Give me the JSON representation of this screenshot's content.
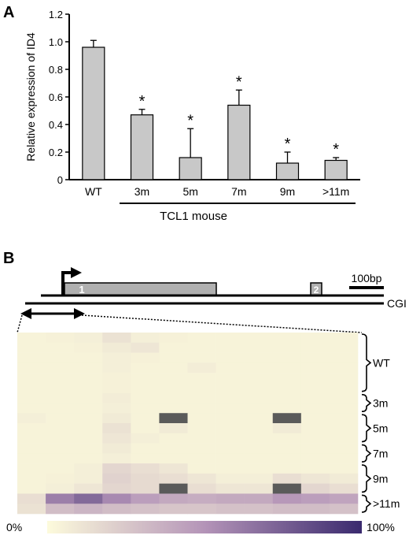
{
  "panel_a": {
    "letter": "A",
    "group_label": "TCL1 mouse"
  },
  "panel_b": {
    "letter": "B",
    "scale_bar_label": "100bp",
    "exon_labels": [
      "1",
      "2"
    ],
    "cgi_label": "CGI",
    "group_labels": [
      "WT",
      "3m",
      "5m",
      "7m",
      "9m",
      ">11m"
    ],
    "colorbar_min": "0%",
    "colorbar_max": "100%"
  },
  "chart_data": [
    {
      "type": "bar",
      "categories": [
        "WT",
        "3m",
        "5m",
        "7m",
        "9m",
        ">11m"
      ],
      "values": [
        0.96,
        0.47,
        0.16,
        0.54,
        0.12,
        0.14
      ],
      "errors": [
        0.05,
        0.04,
        0.21,
        0.11,
        0.08,
        0.02
      ],
      "significant": [
        false,
        true,
        true,
        true,
        true,
        true
      ],
      "significance_marker": "*",
      "ylabel": "Relative expression of ID4",
      "ylim": [
        0,
        1.2
      ],
      "yticks": [
        "0",
        "0.2",
        "0.4",
        "0.6",
        "0.8",
        "1.0",
        "1.2"
      ],
      "bar_color": "#c8c8c8"
    },
    {
      "type": "heatmap",
      "value_range": [
        0,
        100
      ],
      "unit": "%",
      "color_low": "#fdfbdc",
      "color_high": "#3a2a6e",
      "n_columns": 12,
      "rows": [
        [
          4,
          5,
          6,
          12,
          6,
          5,
          4,
          4,
          4,
          4,
          4,
          4
        ],
        [
          4,
          4,
          5,
          8,
          10,
          4,
          4,
          4,
          4,
          4,
          4,
          4
        ],
        [
          4,
          4,
          4,
          6,
          5,
          4,
          4,
          4,
          4,
          4,
          4,
          4
        ],
        [
          4,
          4,
          4,
          6,
          4,
          4,
          7,
          4,
          4,
          4,
          4,
          4
        ],
        [
          4,
          4,
          4,
          5,
          4,
          4,
          4,
          4,
          4,
          4,
          4,
          4
        ],
        [
          4,
          4,
          4,
          5,
          4,
          4,
          4,
          4,
          4,
          4,
          4,
          4
        ],
        [
          4,
          4,
          4,
          7,
          4,
          4,
          4,
          4,
          4,
          4,
          4,
          4
        ],
        [
          4,
          4,
          4,
          6,
          4,
          4,
          4,
          4,
          4,
          4,
          4,
          4
        ],
        [
          6,
          4,
          4,
          8,
          4,
          90,
          4,
          4,
          4,
          90,
          4,
          4
        ],
        [
          4,
          4,
          4,
          12,
          4,
          8,
          4,
          4,
          4,
          8,
          4,
          4
        ],
        [
          4,
          4,
          4,
          10,
          6,
          4,
          4,
          4,
          4,
          4,
          4,
          4
        ],
        [
          4,
          4,
          4,
          8,
          4,
          4,
          4,
          4,
          4,
          4,
          4,
          4
        ],
        [
          4,
          4,
          4,
          6,
          4,
          4,
          4,
          4,
          4,
          4,
          4,
          4
        ],
        [
          4,
          4,
          6,
          18,
          14,
          10,
          4,
          4,
          4,
          4,
          4,
          4
        ],
        [
          4,
          5,
          6,
          20,
          16,
          14,
          10,
          6,
          6,
          14,
          10,
          8
        ],
        [
          4,
          6,
          10,
          18,
          16,
          90,
          14,
          10,
          10,
          90,
          18,
          14
        ],
        [
          14,
          60,
          70,
          55,
          45,
          40,
          38,
          40,
          40,
          48,
          45,
          42
        ],
        [
          12,
          30,
          34,
          30,
          28,
          26,
          26,
          28,
          28,
          30,
          30,
          28
        ]
      ],
      "row_groups": [
        {
          "label": "WT",
          "rows": [
            0,
            5
          ]
        },
        {
          "label": "3m",
          "rows": [
            6,
            7
          ]
        },
        {
          "label": "5m",
          "rows": [
            8,
            10
          ]
        },
        {
          "label": "7m",
          "rows": [
            11,
            12
          ]
        },
        {
          "label": "9m",
          "rows": [
            13,
            15
          ]
        },
        {
          "label": ">11m",
          "rows": [
            16,
            17
          ]
        }
      ]
    }
  ]
}
